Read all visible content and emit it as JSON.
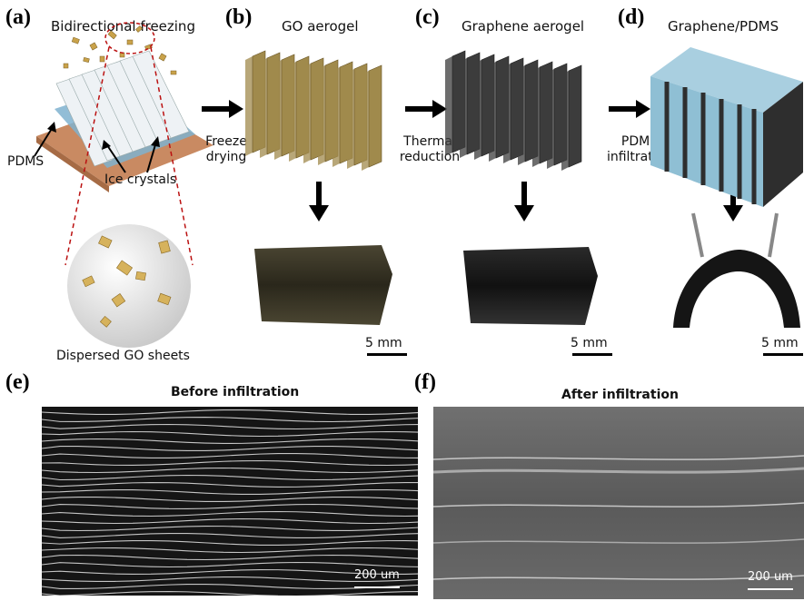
{
  "panels": {
    "a": {
      "label": "(a)",
      "title": "Bidirectional freezing",
      "pdms": "PDMS",
      "ice": "Ice crystals",
      "dispersed": "Dispersed GO sheets"
    },
    "b": {
      "label": "(b)",
      "title": "GO aerogel",
      "scale": "5 mm"
    },
    "c": {
      "label": "(c)",
      "title": "Graphene aerogel",
      "scale": "5 mm"
    },
    "d": {
      "label": "(d)",
      "title": "Graphene/PDMS",
      "scale": "5 mm"
    },
    "e": {
      "label": "(e)",
      "title": "Before infiltration",
      "scale": "200 um"
    },
    "f": {
      "label": "(f)",
      "title": "After infiltration",
      "scale": "200 um"
    }
  },
  "steps": {
    "step1_line1": "Freeze",
    "step1_line2": "drying",
    "step2_line1": "Thermal",
    "step2_line2": "reduction",
    "step3_line1": "PDMS",
    "step3_line2": "infiltration"
  },
  "colors": {
    "go": "#a08a4c",
    "graphene": "#3c3c3c",
    "pdms_fill": "#a9cfe0",
    "ice": "#7fb2cf",
    "substrate": "#c98a62",
    "flake": "#c9a24a",
    "sem_bg": "#1a1a1a",
    "sem2_bg": "#6a6a6a"
  }
}
